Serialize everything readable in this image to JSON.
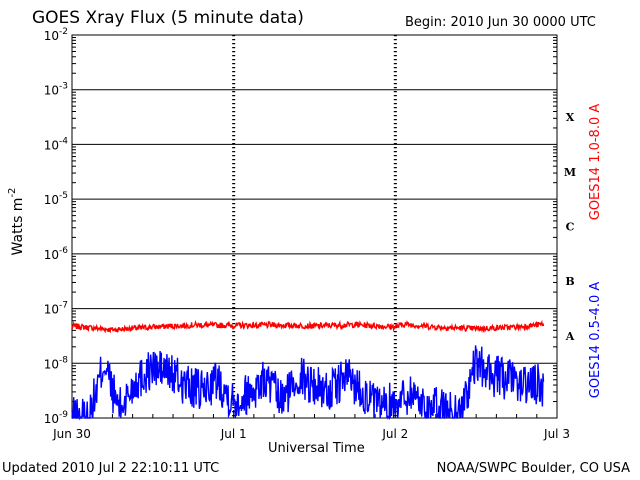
{
  "title": "GOES Xray Flux (5 minute data)",
  "begin_label": "Begin:  2010 Jun 30 0000 UTC",
  "updated_label": "Updated 2010 Jul  2 22:10:11 UTC",
  "credit": "NOAA/SWPC Boulder, CO USA",
  "colors": {
    "long": "#ff0000",
    "short": "#0000ff",
    "axes": "#000000"
  },
  "chart_data": {
    "type": "line",
    "xlabel": "Universal Time",
    "ylabel": "Watts m",
    "ylabel_sup": "-2",
    "ylog": true,
    "ylim": [
      1e-09,
      0.01
    ],
    "y_ticks": [
      {
        "mant": "10",
        "exp": "-2"
      },
      {
        "mant": "10",
        "exp": "-3"
      },
      {
        "mant": "10",
        "exp": "-4"
      },
      {
        "mant": "10",
        "exp": "-5"
      },
      {
        "mant": "10",
        "exp": "-6"
      },
      {
        "mant": "10",
        "exp": "-7"
      },
      {
        "mant": "10",
        "exp": "-8"
      },
      {
        "mant": "10",
        "exp": "-9"
      }
    ],
    "x_ticks": [
      "Jun 30",
      "Jul 1",
      "Jul 2",
      "Jul 3"
    ],
    "flare_classes": [
      "X",
      "M",
      "C",
      "B",
      "A"
    ],
    "series": [
      {
        "name": "GOES14 1.0-8.0 A",
        "color": "#ff0000",
        "x_days": [
          0.0,
          0.25,
          0.5,
          0.75,
          1.0,
          1.25,
          1.5,
          1.75,
          2.0,
          2.05,
          2.25,
          2.5,
          2.75,
          2.92
        ],
        "values": [
          4.8e-08,
          4.1e-08,
          4.6e-08,
          5e-08,
          4.9e-08,
          5e-08,
          4.8e-08,
          5.1e-08,
          4.6e-08,
          5.2e-08,
          4.6e-08,
          4.3e-08,
          4.6e-08,
          5.2e-08
        ]
      },
      {
        "name": "GOES14 0.5-4.0 A",
        "color": "#0000ff",
        "x_days": [
          0.0,
          0.1,
          0.15,
          0.2,
          0.25,
          0.3,
          0.4,
          0.5,
          0.6,
          0.7,
          0.8,
          0.9,
          1.0,
          1.1,
          1.2,
          1.3,
          1.4,
          1.5,
          1.6,
          1.7,
          1.8,
          1.9,
          2.0,
          2.1,
          2.2,
          2.3,
          2.4,
          2.5,
          2.6,
          2.7,
          2.8,
          2.9,
          2.92
        ],
        "values": [
          1e-09,
          1e-09,
          3e-09,
          1.1e-08,
          3e-09,
          1.5e-09,
          5e-09,
          8e-09,
          7e-09,
          4e-09,
          3e-09,
          5e-09,
          2e-09,
          3e-09,
          5e-09,
          2e-09,
          6e-09,
          4e-09,
          3e-09,
          6e-09,
          3e-09,
          1.5e-09,
          2e-09,
          3e-09,
          1.5e-09,
          1.5e-09,
          1.2e-09,
          1e-08,
          6e-09,
          5e-09,
          4e-09,
          4e-09,
          3e-09
        ]
      }
    ],
    "xlim_days": [
      0,
      3
    ],
    "grid": true
  }
}
